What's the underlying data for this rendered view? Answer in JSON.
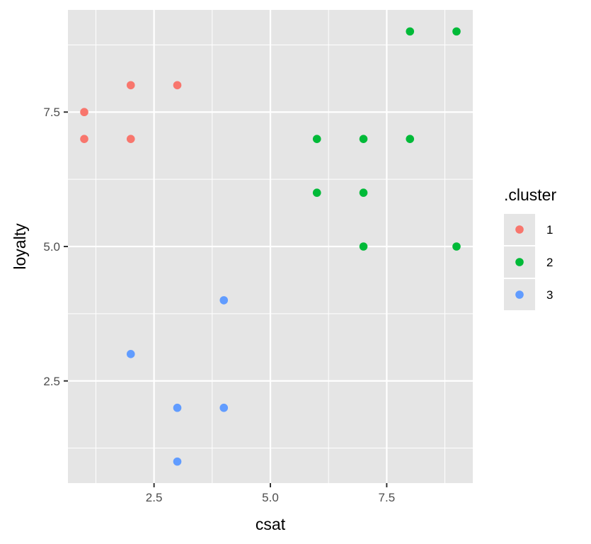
{
  "chart_data": {
    "type": "scatter",
    "xlabel": "csat",
    "ylabel": "loyalty",
    "xlim": [
      0.65,
      9.35
    ],
    "ylim": [
      0.6,
      9.4
    ],
    "x_ticks": [
      2.5,
      5.0,
      7.5
    ],
    "x_tick_labels": [
      "2.5",
      "5.0",
      "7.5"
    ],
    "y_ticks": [
      2.5,
      5.0,
      7.5
    ],
    "y_tick_labels": [
      "2.5",
      "5.0",
      "7.5"
    ],
    "grid": true,
    "legend_position": "right",
    "legend_title": ".cluster",
    "panel_background": "#e5e5e5",
    "series": [
      {
        "name": "1",
        "color": "#f8766d",
        "points": [
          {
            "x": 1,
            "y": 7.5
          },
          {
            "x": 1,
            "y": 7
          },
          {
            "x": 2,
            "y": 8
          },
          {
            "x": 2,
            "y": 7
          },
          {
            "x": 3,
            "y": 8
          }
        ]
      },
      {
        "name": "2",
        "color": "#00ba38",
        "points": [
          {
            "x": 8,
            "y": 9
          },
          {
            "x": 9,
            "y": 9
          },
          {
            "x": 6,
            "y": 7
          },
          {
            "x": 7,
            "y": 7
          },
          {
            "x": 8,
            "y": 7
          },
          {
            "x": 6,
            "y": 6
          },
          {
            "x": 7,
            "y": 6
          },
          {
            "x": 7,
            "y": 5
          },
          {
            "x": 9,
            "y": 5
          }
        ]
      },
      {
        "name": "3",
        "color": "#619cff",
        "points": [
          {
            "x": 4,
            "y": 4
          },
          {
            "x": 2,
            "y": 3
          },
          {
            "x": 3,
            "y": 2
          },
          {
            "x": 4,
            "y": 2
          },
          {
            "x": 3,
            "y": 1
          }
        ]
      }
    ]
  }
}
